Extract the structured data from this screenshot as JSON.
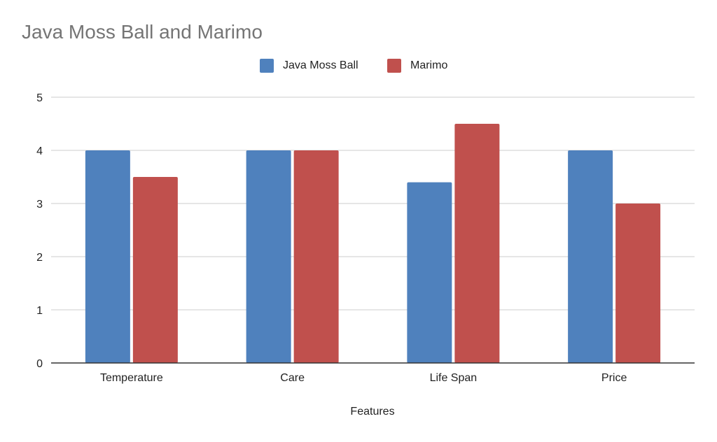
{
  "chart_data": {
    "type": "bar",
    "title": "Java Moss Ball and Marimo",
    "xlabel": "Features",
    "ylabel": "",
    "categories": [
      "Temperature",
      "Care",
      "Life Span",
      "Price"
    ],
    "series": [
      {
        "name": "Java Moss Ball",
        "color": "#4f81bd",
        "values": [
          4,
          4,
          3.4,
          4
        ]
      },
      {
        "name": "Marimo",
        "color": "#c0504d",
        "values": [
          3.5,
          4,
          4.5,
          3
        ]
      }
    ],
    "ylim": [
      0,
      5
    ],
    "yticks": [
      "0",
      "1",
      "2",
      "3",
      "4",
      "5"
    ],
    "grid": true,
    "legend_position": "top"
  }
}
